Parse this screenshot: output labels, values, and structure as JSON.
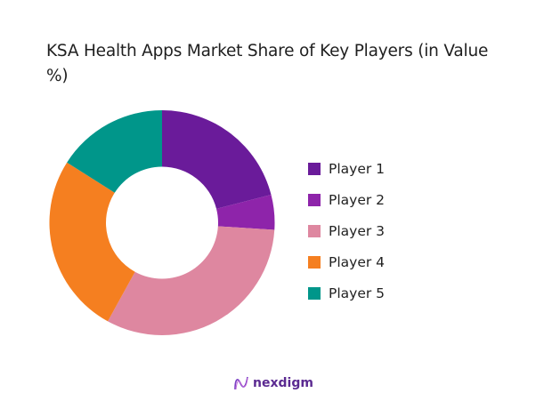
{
  "title": "KSA Health Apps Market Share of Key Players (in Value %)",
  "logo": {
    "text": "nexdigm",
    "icon": "nexdigm-logo-icon"
  },
  "chart_data": {
    "type": "pie",
    "variant": "donut",
    "title": "KSA Health Apps Market Share of Key Players (in Value %)",
    "categories": [
      "Player 1",
      "Player 2",
      "Player 3",
      "Player 4",
      "Player 5"
    ],
    "values": [
      21,
      5,
      32,
      26,
      16
    ],
    "colors": [
      "#6a1b9a",
      "#8e24aa",
      "#de87a0",
      "#f57f20",
      "#00968a"
    ],
    "start_angle_deg": 0,
    "direction": "clockwise",
    "legend_position": "right",
    "data_labels": false
  },
  "legend": [
    {
      "label": "Player 1",
      "color": "#6a1b9a"
    },
    {
      "label": "Player 2",
      "color": "#8e24aa"
    },
    {
      "label": "Player 3",
      "color": "#de87a0"
    },
    {
      "label": "Player 4",
      "color": "#f57f20"
    },
    {
      "label": "Player 5",
      "color": "#00968a"
    }
  ]
}
